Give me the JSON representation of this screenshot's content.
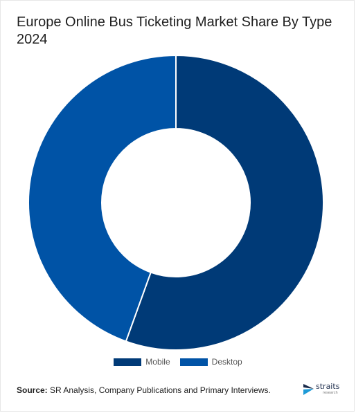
{
  "title": "Europe Online Bus Ticketing Market Share By Type 2024",
  "chart_data": {
    "type": "pie",
    "variant": "donut",
    "categories": [
      "Mobile",
      "Desktop"
    ],
    "values": [
      55.5,
      44.5
    ],
    "unit": "%",
    "colors": [
      "#003a77",
      "#0053a6"
    ],
    "legend_position": "bottom"
  },
  "source": {
    "label": "Source:",
    "text": " SR Analysis, Company Publications and Primary Interviews."
  },
  "logo": {
    "word": "straits",
    "sub": "research"
  }
}
